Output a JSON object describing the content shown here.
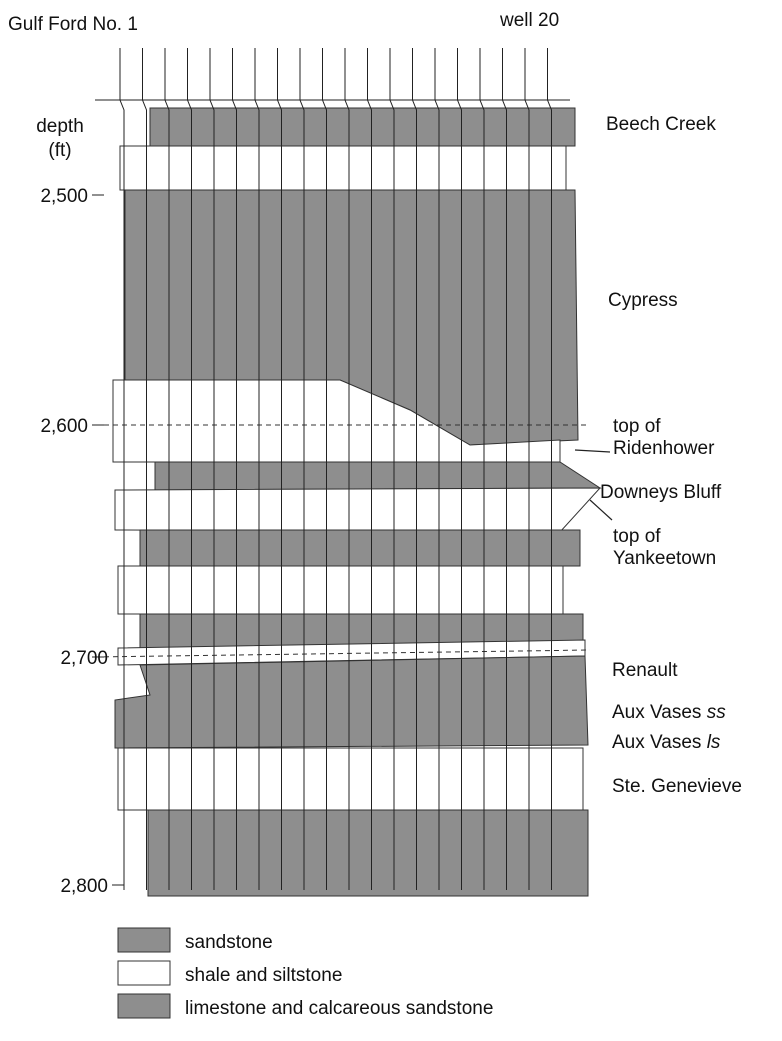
{
  "header": {
    "left_well": "Gulf Ford No. 1",
    "right_well": "well 20"
  },
  "depth_axis": {
    "label_lines": [
      "depth",
      "(ft)"
    ],
    "ticks": [
      "2,500",
      "2,600",
      "2,700",
      "2,800"
    ]
  },
  "formations": [
    {
      "lines": [
        "Beech Creek"
      ]
    },
    {
      "lines": [
        "Cypress"
      ]
    },
    {
      "lines": [
        "top of",
        "Ridenhower"
      ]
    },
    {
      "lines": [
        "Downeys Bluff"
      ]
    },
    {
      "lines": [
        "top of",
        "Yankeetown"
      ]
    },
    {
      "lines": [
        "Renault"
      ]
    },
    {
      "lines": [
        "Aux Vases"
      ],
      "suffix": "ss"
    },
    {
      "lines": [
        "Aux Vases"
      ],
      "suffix": "ls"
    },
    {
      "lines": [
        "Ste. Genevieve"
      ]
    }
  ],
  "legend": [
    "sandstone",
    "shale and siltstone",
    "limestone and calcareous sandstone"
  ]
}
